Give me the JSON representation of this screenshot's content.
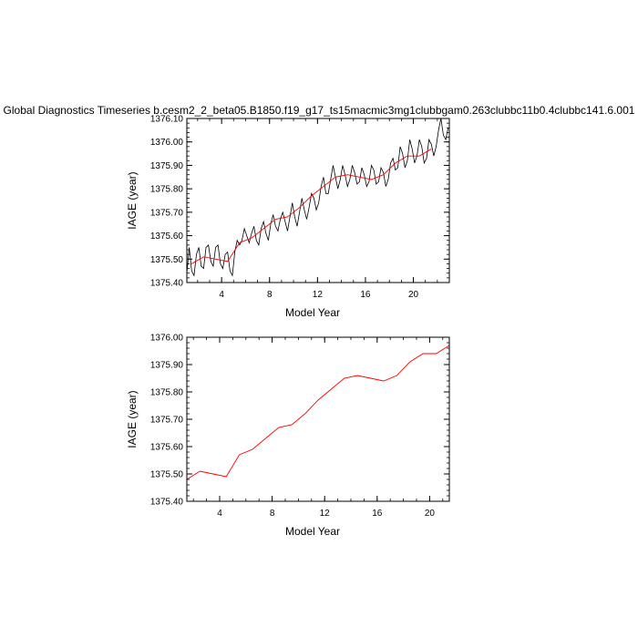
{
  "title": "Global Diagnostics Timeseries b.cesm2_2_beta05.B1850.f19_g17_ts15macmic3mg1clubbgam0.263clubbc11b0.4clubbc141.6.001",
  "colors": {
    "monthly": "#000000",
    "annual": "#ff0000"
  },
  "chart_data": [
    {
      "type": "line",
      "xlabel": "Model Year",
      "ylabel": "IAGE (year)",
      "xlim": [
        1.1,
        23.0
      ],
      "ylim": [
        1375.4,
        1376.1
      ],
      "xticks": [
        4,
        8,
        12,
        16,
        20
      ],
      "xtick_labels": [
        "4",
        "8",
        "12",
        "16",
        "20"
      ],
      "yticks": [
        1375.4,
        1375.5,
        1375.6,
        1375.7,
        1375.8,
        1375.9,
        1376.0,
        1376.1
      ],
      "ytick_labels": [
        "1375.40",
        "1375.50",
        "1375.60",
        "1375.70",
        "1375.80",
        "1375.90",
        "1376.00",
        "1376.10"
      ],
      "series": [
        {
          "style": "monthly",
          "x": [
            1.1,
            1.3,
            1.5,
            1.7,
            1.9,
            2.1,
            2.3,
            2.5,
            2.7,
            2.9,
            3.1,
            3.3,
            3.5,
            3.7,
            3.9,
            4.1,
            4.3,
            4.5,
            4.7,
            4.9,
            5.1,
            5.3,
            5.5,
            5.7,
            5.9,
            6.1,
            6.3,
            6.5,
            6.7,
            6.9,
            7.1,
            7.3,
            7.5,
            7.7,
            7.9,
            8.1,
            8.3,
            8.5,
            8.7,
            8.9,
            9.1,
            9.3,
            9.5,
            9.7,
            9.9,
            10.1,
            10.3,
            10.5,
            10.7,
            10.9,
            11.1,
            11.3,
            11.5,
            11.7,
            11.9,
            12.1,
            12.3,
            12.5,
            12.7,
            12.9,
            13.1,
            13.3,
            13.5,
            13.7,
            13.9,
            14.1,
            14.3,
            14.5,
            14.7,
            14.9,
            15.1,
            15.3,
            15.5,
            15.7,
            15.9,
            16.1,
            16.3,
            16.5,
            16.7,
            16.9,
            17.1,
            17.3,
            17.5,
            17.7,
            17.9,
            18.1,
            18.3,
            18.5,
            18.7,
            18.9,
            19.1,
            19.3,
            19.5,
            19.7,
            19.9,
            20.1,
            20.3,
            20.5,
            20.7,
            20.9,
            21.1,
            21.3,
            21.5,
            21.7,
            21.9,
            22.1,
            22.3,
            22.5,
            22.7,
            22.9
          ],
          "y": [
            1375.44,
            1375.55,
            1375.45,
            1375.43,
            1375.52,
            1375.55,
            1375.47,
            1375.46,
            1375.55,
            1375.56,
            1375.49,
            1375.47,
            1375.55,
            1375.56,
            1375.48,
            1375.46,
            1375.52,
            1375.53,
            1375.45,
            1375.43,
            1375.53,
            1375.58,
            1375.56,
            1375.58,
            1375.63,
            1375.6,
            1375.57,
            1375.61,
            1375.64,
            1375.58,
            1375.56,
            1375.63,
            1375.66,
            1375.61,
            1375.58,
            1375.65,
            1375.69,
            1375.64,
            1375.62,
            1375.67,
            1375.7,
            1375.66,
            1375.62,
            1375.68,
            1375.74,
            1375.68,
            1375.64,
            1375.7,
            1375.76,
            1375.71,
            1375.67,
            1375.72,
            1375.78,
            1375.76,
            1375.71,
            1375.74,
            1375.81,
            1375.85,
            1375.78,
            1375.78,
            1375.84,
            1375.9,
            1375.85,
            1375.8,
            1375.84,
            1375.9,
            1375.86,
            1375.81,
            1375.84,
            1375.9,
            1375.87,
            1375.82,
            1375.83,
            1375.89,
            1375.86,
            1375.81,
            1375.83,
            1375.9,
            1375.88,
            1375.82,
            1375.83,
            1375.89,
            1375.87,
            1375.81,
            1375.84,
            1375.91,
            1375.93,
            1375.88,
            1375.89,
            1375.98,
            1375.95,
            1375.89,
            1375.92,
            1376.01,
            1375.97,
            1375.91,
            1375.94,
            1376.01,
            1375.98,
            1375.91,
            1375.93,
            1376.01,
            1375.99,
            1375.94,
            1375.98,
            1376.05,
            1376.1,
            1376.03,
            1376.01,
            1376.06
          ]
        },
        {
          "style": "annual",
          "x": [
            1.5,
            2.5,
            3.5,
            4.5,
            5.5,
            6.5,
            7.5,
            8.5,
            9.5,
            10.5,
            11.5,
            12.5,
            13.5,
            14.5,
            15.5,
            16.5,
            17.5,
            18.5,
            19.5,
            20.5,
            21.5
          ],
          "y": [
            1375.48,
            1375.51,
            1375.5,
            1375.49,
            1375.57,
            1375.59,
            1375.63,
            1375.67,
            1375.68,
            1375.72,
            1375.77,
            1375.81,
            1375.85,
            1375.86,
            1375.85,
            1375.84,
            1375.86,
            1375.91,
            1375.94,
            1375.94,
            1375.97
          ]
        }
      ]
    },
    {
      "type": "line",
      "xlabel": "Model Year",
      "ylabel": "IAGE (year)",
      "xlim": [
        1.5,
        21.5
      ],
      "ylim": [
        1375.4,
        1376.0
      ],
      "xticks": [
        4,
        8,
        12,
        16,
        20
      ],
      "xtick_labels": [
        "4",
        "8",
        "12",
        "16",
        "20"
      ],
      "yticks": [
        1375.4,
        1375.5,
        1375.6,
        1375.7,
        1375.8,
        1375.9,
        1376.0
      ],
      "ytick_labels": [
        "1375.40",
        "1375.50",
        "1375.60",
        "1375.70",
        "1375.80",
        "1375.90",
        "1376.00"
      ],
      "series": [
        {
          "style": "annual",
          "x": [
            1.5,
            2.5,
            3.5,
            4.5,
            5.5,
            6.5,
            7.5,
            8.5,
            9.5,
            10.5,
            11.5,
            12.5,
            13.5,
            14.5,
            15.5,
            16.5,
            17.5,
            18.5,
            19.5,
            20.5,
            21.5
          ],
          "y": [
            1375.48,
            1375.51,
            1375.5,
            1375.49,
            1375.57,
            1375.59,
            1375.63,
            1375.67,
            1375.68,
            1375.72,
            1375.77,
            1375.81,
            1375.85,
            1375.86,
            1375.85,
            1375.84,
            1375.86,
            1375.91,
            1375.94,
            1375.94,
            1375.97
          ]
        }
      ]
    }
  ]
}
